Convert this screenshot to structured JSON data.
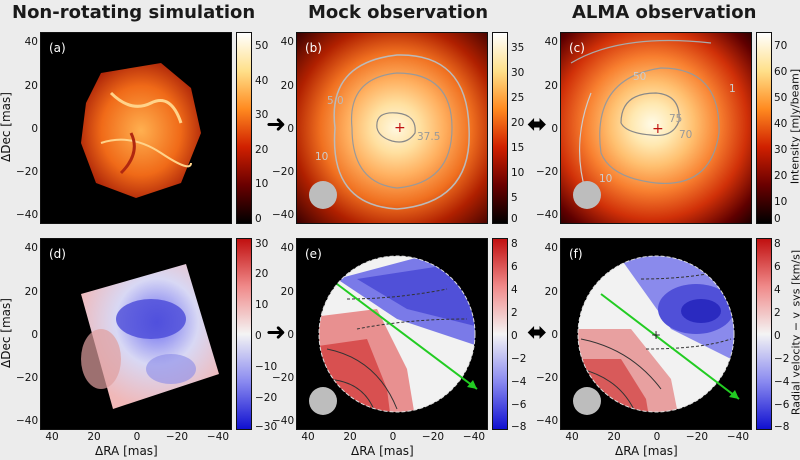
{
  "titles": {
    "left": "Non-rotating simulation",
    "middle": "Mock observation",
    "right": "ALMA observation"
  },
  "panels": {
    "a": "(a)",
    "b": "(b)",
    "c": "(c)",
    "d": "(d)",
    "e": "(e)",
    "f": "(f)"
  },
  "axes": {
    "ylabel": "ΔDec [mas]",
    "xlabel": "ΔRA [mas]",
    "yticks": [
      "40",
      "20",
      "0",
      "−20",
      "−40"
    ],
    "xticks": [
      "40",
      "20",
      "0",
      "−20",
      "−40"
    ]
  },
  "colorbars": {
    "top_left": [
      "50",
      "40",
      "30",
      "20",
      "10",
      "0"
    ],
    "top_mid": [
      "35",
      "30",
      "25",
      "20",
      "15",
      "10",
      "5",
      "0"
    ],
    "top_right": [
      "70",
      "60",
      "50",
      "40",
      "30",
      "20",
      "10",
      "0"
    ],
    "top_right_label": "Intensity [mJy/beam]",
    "bot_left": [
      "30",
      "20",
      "10",
      "0",
      "−10",
      "−20",
      "−30"
    ],
    "bot_mid": [
      "8",
      "6",
      "4",
      "2",
      "0",
      "−2",
      "−4",
      "−6",
      "−8"
    ],
    "bot_right": [
      "8",
      "6",
      "4",
      "2",
      "0",
      "−2",
      "−4",
      "−6",
      "−8"
    ],
    "bot_right_label": "Radial velocity − v_sys [km/s]"
  },
  "contours": {
    "b": [
      "5.0",
      "10",
      "37.5"
    ],
    "c": [
      "50",
      "75",
      "70",
      "10",
      "1"
    ]
  },
  "arrows": {
    "right": "➜",
    "both": "⬌"
  },
  "colors": {
    "hot": "#ff9a2a",
    "alma_core": "#fff6d6",
    "blue": "#3a3ad8",
    "red": "#d84040",
    "green_line": "#22cc22"
  }
}
